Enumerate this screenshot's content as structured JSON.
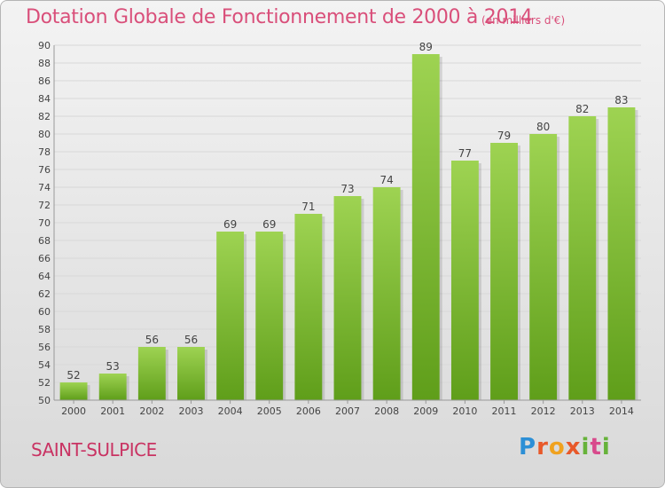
{
  "title": "Dotation Globale de Fonctionnement de 2000 à 2014",
  "subtitle": "(en milliers d'€)",
  "commune": "SAINT-SULPICE",
  "logo": "Proxiti",
  "chart_data": {
    "type": "bar",
    "title": "Dotation Globale de Fonctionnement de 2000 à 2014",
    "subtitle": "(en milliers d'€)",
    "categories": [
      "2000",
      "2001",
      "2002",
      "2003",
      "2004",
      "2005",
      "2006",
      "2007",
      "2008",
      "2009",
      "2010",
      "2011",
      "2012",
      "2013",
      "2014"
    ],
    "values": [
      52,
      53,
      56,
      56,
      69,
      69,
      71,
      73,
      74,
      89,
      77,
      79,
      80,
      82,
      83
    ],
    "ylim": [
      50,
      90
    ],
    "yticks": [
      50,
      52,
      54,
      56,
      58,
      60,
      62,
      64,
      66,
      68,
      70,
      72,
      74,
      76,
      78,
      80,
      82,
      84,
      86,
      88,
      90
    ],
    "grid": true,
    "bar_color": "#7cbf2e"
  }
}
